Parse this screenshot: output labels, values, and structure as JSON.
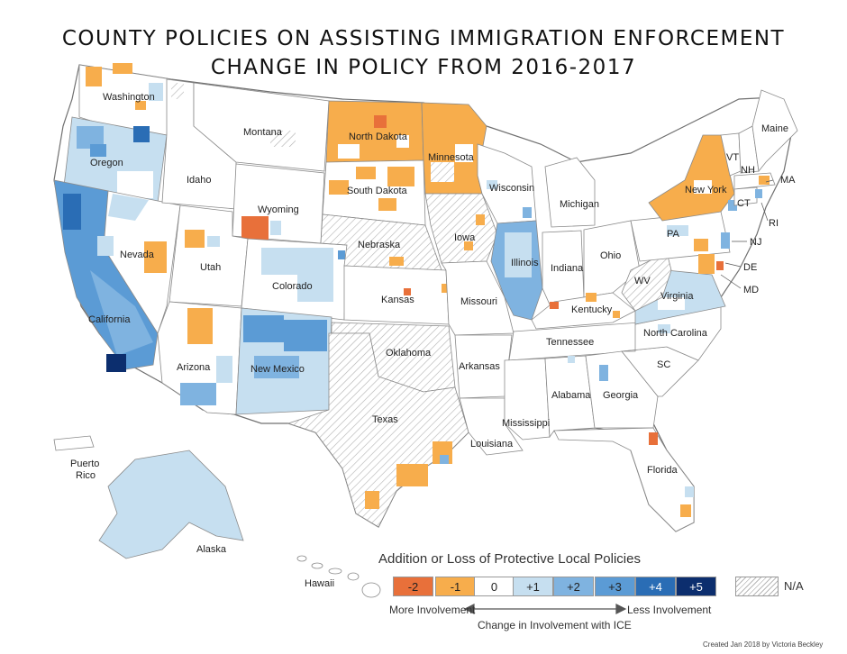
{
  "title": {
    "line1": "COUNTY POLICIES ON ASSISTING IMMIGRATION ENFORCEMENT",
    "line2": "CHANGE IN POLICY FROM 2016-2017"
  },
  "colors": {
    "minus2": "#e8703a",
    "minus1": "#f7ad4c",
    "zero": "#ffffff",
    "plus1": "#c6dff0",
    "plus2": "#7fb3e0",
    "plus3": "#5b9bd5",
    "plus4": "#2a6db5",
    "plus5": "#0c2e6e",
    "na_hatch": "#b8b8b8",
    "border": "#8a8a8a"
  },
  "state_labels": [
    "Washington",
    "Oregon",
    "California",
    "Idaho",
    "Montana",
    "Nevada",
    "Utah",
    "Wyoming",
    "Arizona",
    "Colorado",
    "New Mexico",
    "North Dakota",
    "South Dakota",
    "Nebraska",
    "Kansas",
    "Oklahoma",
    "Texas",
    "Minnesota",
    "Iowa",
    "Missouri",
    "Arkansas",
    "Louisiana",
    "Wisconsin",
    "Illinois",
    "Michigan",
    "Indiana",
    "Ohio",
    "Kentucky",
    "Tennessee",
    "Mississippi",
    "Alabama",
    "Georgia",
    "Florida",
    "SC",
    "North Carolina",
    "Virginia",
    "WV",
    "PA",
    "New York",
    "VT",
    "NH",
    "Maine",
    "MA",
    "CT",
    "RI",
    "NJ",
    "DE",
    "MD",
    "Alaska",
    "Hawaii",
    "Puerto Rico"
  ],
  "legend": {
    "title": "Addition or Loss of Protective Local Policies",
    "categories": [
      "-2",
      "-1",
      "0",
      "+1",
      "+2",
      "+3",
      "+4",
      "+5"
    ],
    "na_label": "N/A",
    "more_label": "More Involvement",
    "less_label": "Less Involvement",
    "axis_label": "Change in Involvement with ICE"
  },
  "credit": "Created Jan 2018 by Victoria Beckley"
}
